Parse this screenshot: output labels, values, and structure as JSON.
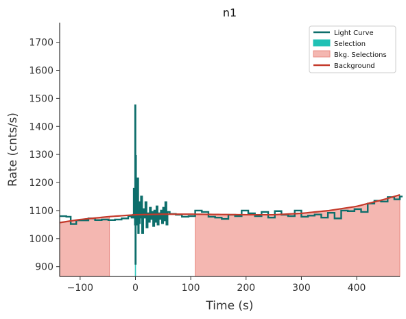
{
  "chart_data": {
    "type": "line",
    "title": "n1",
    "xlabel": "Time (s)",
    "ylabel": "Rate (cnts/s)",
    "xlim": [
      -137,
      478
    ],
    "ylim": [
      865,
      1770
    ],
    "xticks": [
      -100,
      0,
      100,
      200,
      300,
      400
    ],
    "yticks": [
      900,
      1000,
      1100,
      1200,
      1300,
      1400,
      1500,
      1600,
      1700
    ],
    "xtick_labels": [
      "−100",
      "0",
      "100",
      "200",
      "300",
      "400"
    ],
    "ytick_labels": [
      "900",
      "1000",
      "1100",
      "1200",
      "1300",
      "1400",
      "1500",
      "1600",
      "1700"
    ],
    "grid": false,
    "legend_position": "top-right",
    "colors": {
      "light_curve": "#0d6e6b",
      "selection": "#1fc1b5",
      "bkg_selection_fill": "#f4b7b1",
      "bkg_selection_edge": "#e88b84",
      "background": "#c43a2b"
    },
    "legend": [
      {
        "label": "Light Curve",
        "kind": "line",
        "color": "#0d6e6b"
      },
      {
        "label": "Selection",
        "kind": "patch",
        "color": "#1fc1b5"
      },
      {
        "label": "Bkg. Selections",
        "kind": "patch",
        "color": "#f4b7b1"
      },
      {
        "label": "Background",
        "kind": "line",
        "color": "#c43a2b"
      }
    ],
    "selection_interval": [
      -1,
      1
    ],
    "bkg_selections": [
      [
        -137,
        -47
      ],
      [
        108,
        478
      ]
    ],
    "background_fit": {
      "x": [
        -137,
        -100,
        -50,
        0,
        50,
        100,
        150,
        200,
        250,
        300,
        350,
        400,
        450,
        478
      ],
      "y": [
        1057,
        1068,
        1078,
        1085,
        1087,
        1087,
        1086,
        1085,
        1085,
        1090,
        1100,
        1115,
        1140,
        1156
      ]
    },
    "light_curve": {
      "x": [
        -137,
        -125,
        -117,
        -107,
        -97,
        -85,
        -73,
        -61,
        -49,
        -37,
        -25,
        -13,
        -7,
        -4,
        -3,
        -2,
        -1,
        -0.5,
        0,
        0.5,
        1,
        2,
        3,
        4,
        5,
        6,
        7,
        8,
        9,
        10,
        12,
        14,
        16,
        18,
        20,
        22,
        24,
        26,
        28,
        30,
        32,
        34,
        36,
        38,
        40,
        42,
        44,
        46,
        48,
        50,
        52,
        54,
        56,
        58,
        62,
        73,
        84,
        96,
        108,
        120,
        132,
        144,
        156,
        168,
        180,
        192,
        204,
        216,
        228,
        240,
        252,
        264,
        276,
        288,
        300,
        312,
        324,
        336,
        348,
        360,
        372,
        384,
        396,
        408,
        420,
        432,
        444,
        456,
        468,
        478
      ],
      "y": [
        1080,
        1078,
        1052,
        1065,
        1065,
        1072,
        1066,
        1068,
        1066,
        1068,
        1072,
        1080,
        1075,
        1085,
        1178,
        1110,
        1050,
        1475,
        910,
        1295,
        1090,
        1160,
        1050,
        1215,
        1020,
        1100,
        1055,
        1130,
        1075,
        1150,
        1020,
        1105,
        1075,
        1130,
        1040,
        1090,
        1060,
        1110,
        1070,
        1095,
        1045,
        1100,
        1060,
        1115,
        1050,
        1090,
        1070,
        1100,
        1055,
        1110,
        1065,
        1130,
        1050,
        1095,
        1088,
        1085,
        1078,
        1080,
        1100,
        1095,
        1078,
        1075,
        1070,
        1085,
        1080,
        1100,
        1090,
        1080,
        1095,
        1075,
        1098,
        1085,
        1080,
        1100,
        1078,
        1082,
        1086,
        1075,
        1092,
        1072,
        1100,
        1098,
        1105,
        1095,
        1125,
        1135,
        1132,
        1148,
        1140,
        1150
      ]
    }
  }
}
